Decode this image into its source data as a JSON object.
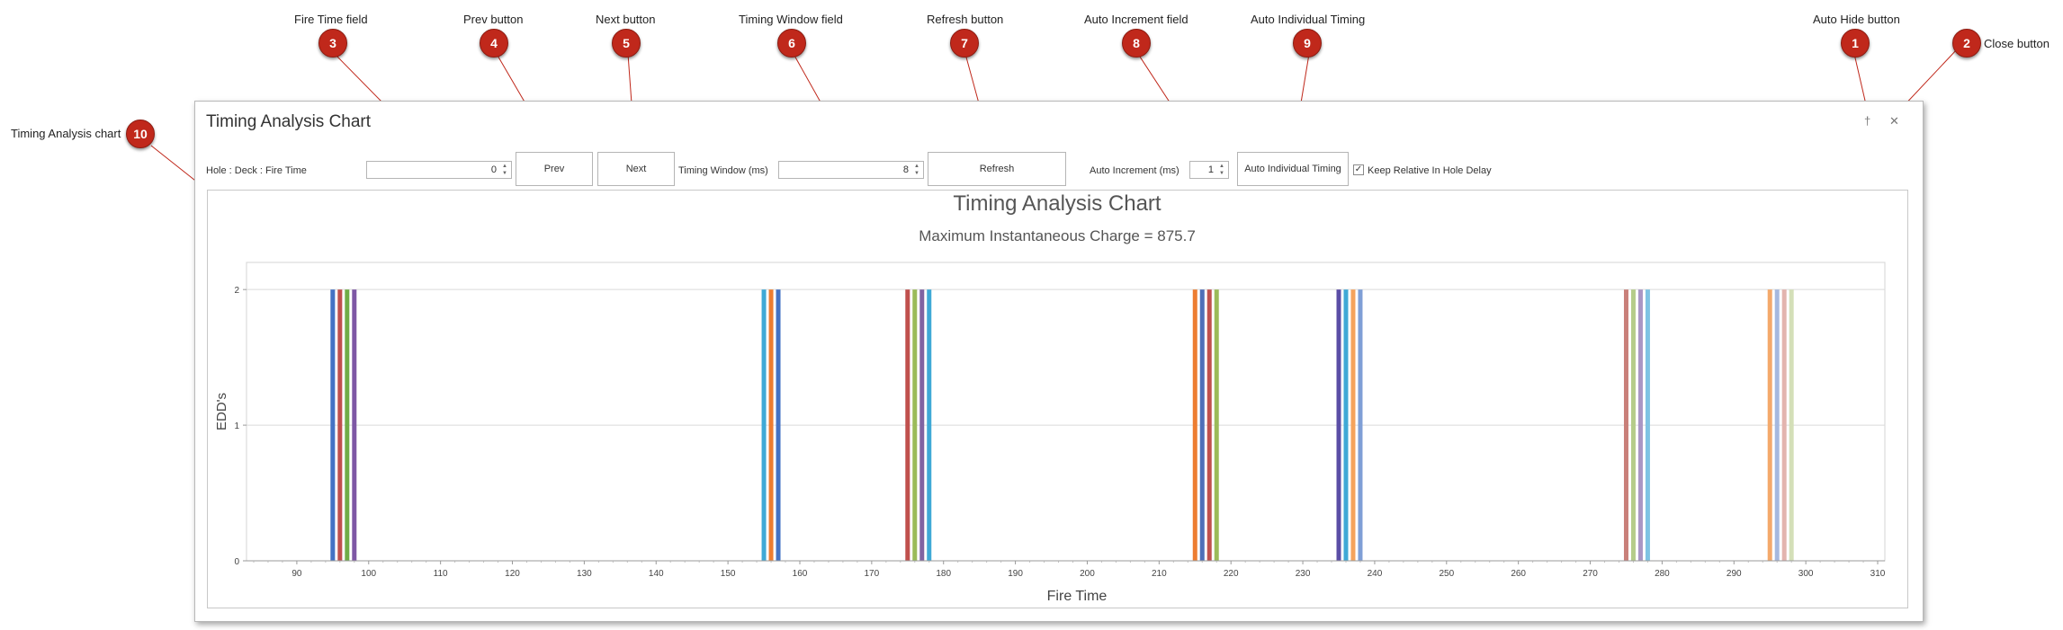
{
  "callouts": [
    {
      "n": "1",
      "label": "Auto Hide button"
    },
    {
      "n": "2",
      "label": "Close button"
    },
    {
      "n": "3",
      "label": "Fire Time field"
    },
    {
      "n": "4",
      "label": "Prev button"
    },
    {
      "n": "5",
      "label": "Next button"
    },
    {
      "n": "6",
      "label": "Timing Window field"
    },
    {
      "n": "7",
      "label": "Refresh button"
    },
    {
      "n": "8",
      "label": "Auto Increment field"
    },
    {
      "n": "9",
      "label": "Auto Individual Timing"
    },
    {
      "n": "10",
      "label": "Timing Analysis chart"
    }
  ],
  "window": {
    "title": "Timing Analysis Chart",
    "auto_hide_icon": "pin-icon",
    "auto_hide_glyph": "†",
    "close_icon": "close-icon",
    "close_glyph": "✕"
  },
  "toolbar": {
    "hole_label": "Hole : Deck : Fire Time",
    "fire_time_value": "0",
    "prev_label": "Prev",
    "next_label": "Next",
    "timing_window_label": "Timing Window (ms)",
    "timing_window_value": "8",
    "refresh_label": "Refresh",
    "auto_increment_label": "Auto Increment (ms)",
    "auto_increment_value": "1",
    "auto_individual_label": "Auto Individual Timing",
    "keep_relative_label": "Keep Relative In Hole Delay",
    "keep_relative_checked": true,
    "spin_up_glyph": "▲",
    "spin_down_glyph": "▼",
    "check_glyph": "✓"
  },
  "chart_data": {
    "type": "bar",
    "title": "Timing Analysis Chart",
    "subtitle": "Maximum Instantaneous Charge = 875.7",
    "xlabel": "Fire Time",
    "ylabel": "EDD's",
    "xlim": [
      83,
      311
    ],
    "ylim": [
      0,
      2.2
    ],
    "xticks": [
      90,
      100,
      110,
      120,
      130,
      140,
      150,
      160,
      170,
      180,
      190,
      200,
      210,
      220,
      230,
      240,
      250,
      260,
      270,
      280,
      290,
      300,
      310
    ],
    "yticks": [
      0,
      1,
      2
    ],
    "grid": true,
    "bars": [
      {
        "x": 95,
        "value": 2,
        "color": "#4472c4"
      },
      {
        "x": 96,
        "value": 2,
        "color": "#c0504d"
      },
      {
        "x": 97,
        "value": 2,
        "color": "#70ad47"
      },
      {
        "x": 98,
        "value": 2,
        "color": "#7e57a5"
      },
      {
        "x": 155,
        "value": 2,
        "color": "#3fa9d6"
      },
      {
        "x": 156,
        "value": 2,
        "color": "#ed7d31"
      },
      {
        "x": 157,
        "value": 2,
        "color": "#4472c4"
      },
      {
        "x": 175,
        "value": 2,
        "color": "#c0504d"
      },
      {
        "x": 176,
        "value": 2,
        "color": "#9bbb59"
      },
      {
        "x": 177,
        "value": 2,
        "color": "#8064a2"
      },
      {
        "x": 178,
        "value": 2,
        "color": "#3fa9d6"
      },
      {
        "x": 215,
        "value": 2,
        "color": "#ed7d31"
      },
      {
        "x": 216,
        "value": 2,
        "color": "#4f6fb8"
      },
      {
        "x": 217,
        "value": 2,
        "color": "#c0504d"
      },
      {
        "x": 218,
        "value": 2,
        "color": "#9bbb59"
      },
      {
        "x": 235,
        "value": 2,
        "color": "#5b4ea6"
      },
      {
        "x": 236,
        "value": 2,
        "color": "#3fa9d6"
      },
      {
        "x": 237,
        "value": 2,
        "color": "#f5a35c"
      },
      {
        "x": 238,
        "value": 2,
        "color": "#7f9fd6"
      },
      {
        "x": 275,
        "value": 2,
        "color": "#c9807a"
      },
      {
        "x": 276,
        "value": 2,
        "color": "#b5cc8a"
      },
      {
        "x": 277,
        "value": 2,
        "color": "#a996c4"
      },
      {
        "x": 278,
        "value": 2,
        "color": "#7fc3e3"
      },
      {
        "x": 295,
        "value": 2,
        "color": "#f4a96b"
      },
      {
        "x": 296,
        "value": 2,
        "color": "#a6b8de"
      },
      {
        "x": 297,
        "value": 2,
        "color": "#e3b4ae"
      },
      {
        "x": 298,
        "value": 2,
        "color": "#d4dfb8"
      }
    ]
  }
}
